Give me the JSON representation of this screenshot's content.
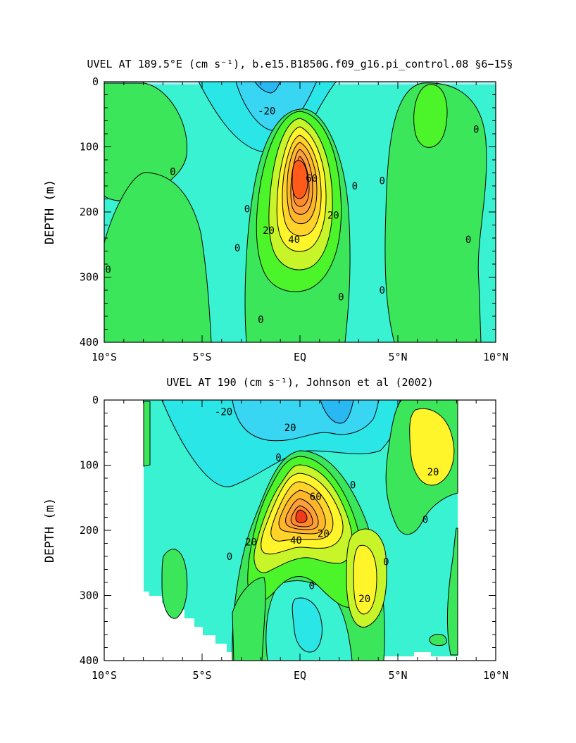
{
  "chart_data": [
    {
      "type": "heatmap",
      "title": "UVEL AT 189.5°E (cm s⁻¹), b.e15.B1850G.f09_g16.pi_control.08 §6−15§",
      "xlabel": "",
      "ylabel": "DEPTH (m)",
      "x_ticks": [
        "10°S",
        "5°S",
        "EQ",
        "5°N",
        "10°N"
      ],
      "y_ticks": [
        "0",
        "100",
        "200",
        "300",
        "400"
      ],
      "xlim": [
        -10,
        10
      ],
      "ylim": [
        400,
        0
      ],
      "contour_labels": [
        {
          "text": "-20",
          "lon": -1.7,
          "depth": 45
        },
        {
          "text": "0",
          "lon": -6.5,
          "depth": 138
        },
        {
          "text": "0",
          "lon": -2.7,
          "depth": 195
        },
        {
          "text": "20",
          "lon": -1.6,
          "depth": 228
        },
        {
          "text": "40",
          "lon": -0.3,
          "depth": 242
        },
        {
          "text": "60",
          "lon": 0.6,
          "depth": 148
        },
        {
          "text": "20",
          "lon": 1.7,
          "depth": 205
        },
        {
          "text": "0",
          "lon": 2.8,
          "depth": 160
        },
        {
          "text": "0",
          "lon": 4.2,
          "depth": 152
        },
        {
          "text": "0",
          "lon": 9.0,
          "depth": 73
        },
        {
          "text": "0",
          "lon": -3.2,
          "depth": 255
        },
        {
          "text": "0",
          "lon": -9.8,
          "depth": 288
        },
        {
          "text": "0",
          "lon": -2.0,
          "depth": 365
        },
        {
          "text": "0",
          "lon": 2.1,
          "depth": 330
        },
        {
          "text": "0",
          "lon": 4.2,
          "depth": 320
        },
        {
          "text": "0",
          "lon": 8.6,
          "depth": 242
        }
      ]
    },
    {
      "type": "heatmap",
      "title": "UVEL AT 190 (cm s⁻¹), Johnson et al (2002)",
      "xlabel": "",
      "ylabel": "DEPTH (m)",
      "x_ticks": [
        "10°S",
        "5°S",
        "EQ",
        "5°N",
        "10°N"
      ],
      "y_ticks": [
        "0",
        "100",
        "200",
        "300",
        "400"
      ],
      "xlim": [
        -10,
        10
      ],
      "ylim": [
        400,
        0
      ],
      "contour_labels": [
        {
          "text": "-20",
          "lon": -3.9,
          "depth": 18
        },
        {
          "text": "20",
          "lon": -0.5,
          "depth": 42
        },
        {
          "text": "0",
          "lon": -1.1,
          "depth": 88
        },
        {
          "text": "60",
          "lon": 0.8,
          "depth": 148
        },
        {
          "text": "20",
          "lon": -2.5,
          "depth": 218
        },
        {
          "text": "40",
          "lon": -0.2,
          "depth": 215
        },
        {
          "text": "20",
          "lon": 1.2,
          "depth": 205
        },
        {
          "text": "0",
          "lon": 2.7,
          "depth": 130
        },
        {
          "text": "20",
          "lon": 6.8,
          "depth": 110
        },
        {
          "text": "0",
          "lon": 6.4,
          "depth": 183
        },
        {
          "text": "0",
          "lon": -3.6,
          "depth": 240
        },
        {
          "text": "0",
          "lon": 4.4,
          "depth": 248
        },
        {
          "text": "0",
          "lon": 0.6,
          "depth": 285
        },
        {
          "text": "20",
          "lon": 3.3,
          "depth": 305
        }
      ]
    }
  ]
}
